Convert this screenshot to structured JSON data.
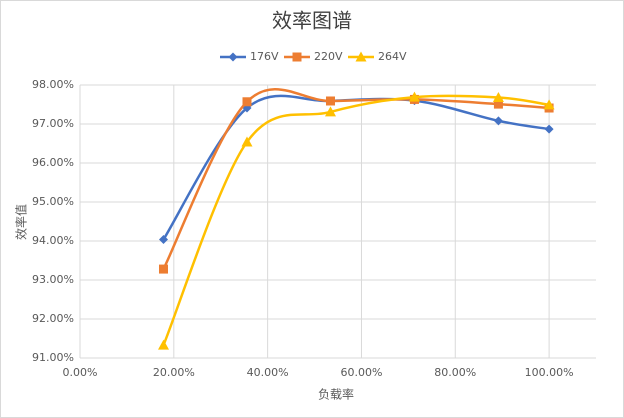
{
  "chart_data": {
    "type": "scatter-smooth",
    "title": "效率图谱",
    "x_label": "负载率",
    "y_label": "效率值",
    "x": [
      17.8,
      35.6,
      53.4,
      71.3,
      89.2,
      100
    ],
    "series": [
      {
        "name": "176V",
        "color": "#4472c4",
        "marker": "diamond",
        "values": [
          94.04,
          97.41,
          97.59,
          97.6,
          97.08,
          96.87
        ]
      },
      {
        "name": "220V",
        "color": "#ed7d31",
        "marker": "square",
        "values": [
          93.28,
          97.57,
          97.59,
          97.63,
          97.51,
          97.41
        ]
      },
      {
        "name": "264V",
        "color": "#ffc000",
        "marker": "triangle",
        "values": [
          91.33,
          96.54,
          97.31,
          97.69,
          97.68,
          97.49
        ]
      }
    ],
    "xlim": [
      0,
      110
    ],
    "xticks": [
      {
        "value": 0,
        "label": "0.00%"
      },
      {
        "value": 20,
        "label": "20.00%"
      },
      {
        "value": 40,
        "label": "40.00%"
      },
      {
        "value": 60,
        "label": "60.00%"
      },
      {
        "value": 80,
        "label": "80.00%"
      },
      {
        "value": 100,
        "label": "100.00%"
      }
    ],
    "ylim": [
      91,
      98
    ],
    "yticks": [
      {
        "value": 91,
        "label": "91.00%"
      },
      {
        "value": 92,
        "label": "92.00%"
      },
      {
        "value": 93,
        "label": "93.00%"
      },
      {
        "value": 94,
        "label": "94.00%"
      },
      {
        "value": 95,
        "label": "95.00%"
      },
      {
        "value": 96,
        "label": "96.00%"
      },
      {
        "value": 97,
        "label": "97.00%"
      },
      {
        "value": 98,
        "label": "98.00%"
      }
    ],
    "grid": true,
    "legend": "top"
  }
}
